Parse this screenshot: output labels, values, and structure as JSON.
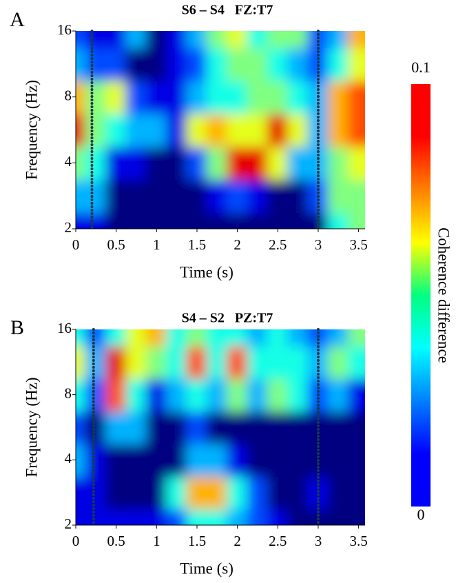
{
  "chart_data": [
    {
      "type": "heatmap",
      "panel_label": "A",
      "title": "S6 – S4   FZ:T7",
      "x_label": "Time (s)",
      "y_label": "Frequency (Hz)",
      "x": [
        0,
        0.25,
        0.5,
        0.75,
        1,
        1.25,
        1.5,
        1.75,
        2,
        2.25,
        2.5,
        2.75,
        3,
        3.25,
        3.5
      ],
      "y": [
        2,
        2.83,
        4,
        5.66,
        8,
        11.3,
        16
      ],
      "z": [
        [
          0.01,
          0.01,
          0,
          0,
          0,
          0,
          0,
          0,
          0,
          0,
          0,
          0,
          0,
          0.04,
          0.05
        ],
        [
          0.03,
          0.03,
          0,
          0,
          0,
          0,
          0,
          0.01,
          0.02,
          0.01,
          0,
          0,
          0.02,
          0.05,
          0.05
        ],
        [
          0.05,
          0.04,
          0.01,
          0.01,
          0,
          0,
          0.02,
          0.05,
          0.09,
          0.09,
          0.06,
          0.03,
          0.03,
          0.05,
          0.06
        ],
        [
          0.09,
          0.05,
          0.04,
          0.03,
          0.03,
          0.01,
          0.06,
          0.07,
          0.06,
          0.06,
          0.09,
          0.06,
          0.03,
          0.07,
          0.08
        ],
        [
          0.07,
          0.05,
          0.06,
          0.02,
          0.01,
          0.01,
          0.03,
          0.04,
          0.04,
          0.05,
          0.05,
          0.04,
          0.03,
          0.07,
          0.08
        ],
        [
          0.03,
          0.02,
          0.02,
          0,
          0,
          0.01,
          0.02,
          0.04,
          0.05,
          0.05,
          0.04,
          0.03,
          0.02,
          0.04,
          0.06
        ],
        [
          0.02,
          0.01,
          0.01,
          0.03,
          0,
          0.01,
          0.03,
          0.05,
          0.06,
          0.04,
          0.05,
          0.05,
          0.02,
          0.03,
          0.07
        ]
      ],
      "xlim": [
        0,
        3.58
      ],
      "ylim": [
        2,
        16
      ],
      "xticks": [
        0,
        0.5,
        1,
        1.5,
        2,
        2.5,
        3,
        3.5
      ],
      "yticks": [
        2,
        4,
        8,
        16
      ],
      "y_scale": "log",
      "vlines": [
        0.2,
        3
      ]
    },
    {
      "type": "heatmap",
      "panel_label": "B",
      "title": "S4 – S2   PZ:T7",
      "x_label": "Time (s)",
      "y_label": "Frequency (Hz)",
      "x": [
        0,
        0.25,
        0.5,
        0.75,
        1,
        1.25,
        1.5,
        1.75,
        2,
        2.25,
        2.5,
        2.75,
        3,
        3.25,
        3.5
      ],
      "y": [
        2,
        2.83,
        4,
        5.66,
        8,
        11.3,
        16
      ],
      "z": [
        [
          0.01,
          0.01,
          0.01,
          0.01,
          0.01,
          0.02,
          0.04,
          0.04,
          0.03,
          0.02,
          0.01,
          0,
          0,
          0,
          0
        ],
        [
          0.01,
          0.01,
          0,
          0,
          0,
          0.04,
          0.07,
          0.07,
          0.04,
          0.02,
          0,
          0,
          0.01,
          0,
          0
        ],
        [
          0.03,
          0.01,
          0,
          0,
          0,
          0,
          0.03,
          0.03,
          0.01,
          0,
          0,
          0,
          0,
          0,
          0
        ],
        [
          0.02,
          0,
          0.03,
          0.03,
          0,
          0,
          0.02,
          0,
          0,
          0,
          0,
          0,
          0,
          0,
          0
        ],
        [
          0.04,
          0.02,
          0.08,
          0.04,
          0.01,
          0.03,
          0.04,
          0.03,
          0.05,
          0.03,
          0.05,
          0.04,
          0.02,
          0.03,
          0.01
        ],
        [
          0.06,
          0.03,
          0.09,
          0.06,
          0.05,
          0.04,
          0.08,
          0.04,
          0.08,
          0.04,
          0.04,
          0.04,
          0.03,
          0.05,
          0.04
        ],
        [
          0.04,
          0.02,
          0.04,
          0.06,
          0.07,
          0.04,
          0.05,
          0.04,
          0.04,
          0.03,
          0.04,
          0.03,
          0.02,
          0.03,
          0.05
        ]
      ],
      "xlim": [
        0,
        3.58
      ],
      "ylim": [
        2,
        16
      ],
      "xticks": [
        0,
        0.5,
        1,
        1.5,
        2,
        2.5,
        3,
        3.5
      ],
      "yticks": [
        2,
        4,
        8,
        16
      ],
      "y_scale": "log",
      "vlines": [
        0.22,
        3
      ]
    }
  ],
  "colorbar": {
    "label": "Coherence difference",
    "lim": [
      0,
      0.1
    ],
    "ticks": [
      0,
      0.1
    ],
    "colormap": "jet"
  }
}
